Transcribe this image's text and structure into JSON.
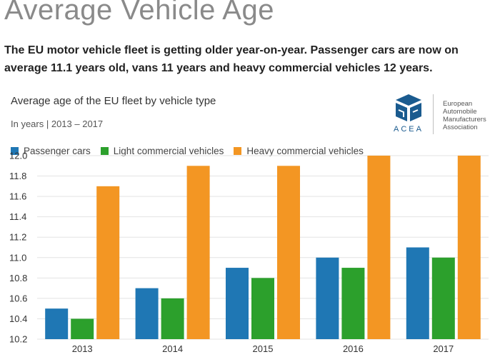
{
  "page": {
    "title": "Average Vehicle Age",
    "intro": "The EU motor vehicle fleet is getting older year-on-year. Passenger cars are now on average 11.1 years old, vans 11 years and heavy commercial vehicles 12 years."
  },
  "logo": {
    "acronym": "ACEA",
    "name_lines": [
      "European",
      "Automobile",
      "Manufacturers",
      "Association"
    ],
    "color": "#1a5b8f"
  },
  "chart_data": {
    "type": "bar",
    "title": "Average age of the EU fleet by vehicle type",
    "subtitle": "In years | 2013 – 2017",
    "xlabel": "",
    "ylabel": "",
    "ylim": [
      10.2,
      12.0
    ],
    "yticks": [
      "12.0",
      "11.8",
      "11.6",
      "11.4",
      "11.2",
      "11.0",
      "10.8",
      "10.6",
      "10.4",
      "10.2"
    ],
    "grid": true,
    "legend_position": "top-left",
    "categories": [
      "2013",
      "2014",
      "2015",
      "2016",
      "2017"
    ],
    "series": [
      {
        "name": "Passenger cars",
        "color": "#1f77b4",
        "values": [
          10.5,
          10.7,
          10.9,
          11.0,
          11.1
        ]
      },
      {
        "name": "Light commercial vehicles",
        "color": "#2ca02c",
        "values": [
          10.4,
          10.6,
          10.8,
          10.9,
          11.0
        ]
      },
      {
        "name": "Heavy commercial vehicles",
        "color": "#f39623",
        "values": [
          11.7,
          11.9,
          11.9,
          12.0,
          12.0
        ]
      }
    ]
  }
}
